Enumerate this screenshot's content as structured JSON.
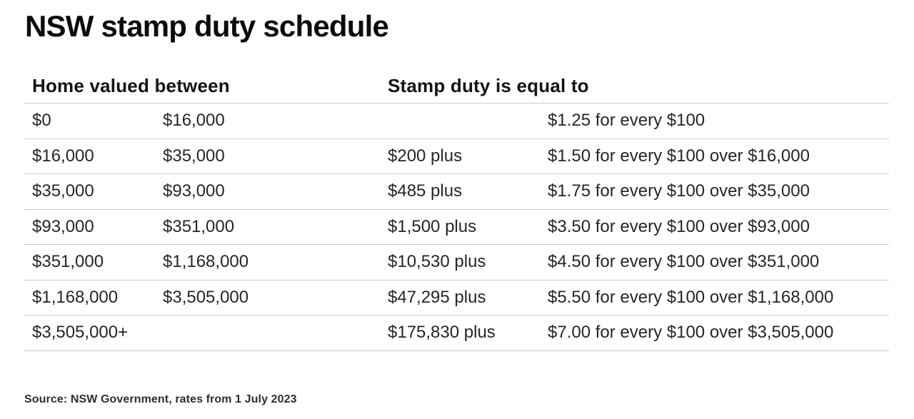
{
  "title": "NSW stamp duty schedule",
  "table": {
    "header_left": "Home valued between",
    "header_right": "Stamp duty is equal to"
  },
  "source": "Source: NSW Government, rates from 1 July 2023",
  "colors": {
    "background": "#ffffff",
    "text": "#222222",
    "divider": "#cccccc"
  },
  "chart_data": {
    "type": "table",
    "title": "NSW stamp duty schedule",
    "columns": [
      "Home valued between",
      "",
      "Stamp duty is equal to",
      ""
    ],
    "rows": [
      [
        "$0",
        "$16,000",
        "",
        "$1.25 for every $100"
      ],
      [
        "$16,000",
        "$35,000",
        "$200 plus",
        "$1.50 for every $100 over $16,000"
      ],
      [
        "$35,000",
        "$93,000",
        "$485 plus",
        "$1.75 for every $100 over $35,000"
      ],
      [
        "$93,000",
        "$351,000",
        "$1,500 plus",
        "$3.50 for every $100 over $93,000"
      ],
      [
        "$351,000",
        "$1,168,000",
        "$10,530 plus",
        "$4.50 for every $100 over $351,000"
      ],
      [
        "$1,168,000",
        "$3,505,000",
        "$47,295 plus",
        "$5.50 for every $100 over $1,168,000"
      ],
      [
        "$3,505,000+",
        "",
        "$175,830 plus",
        "$7.00 for every $100 over $3,505,000"
      ]
    ],
    "source": "Source: NSW Government, rates from 1 July 2023"
  }
}
